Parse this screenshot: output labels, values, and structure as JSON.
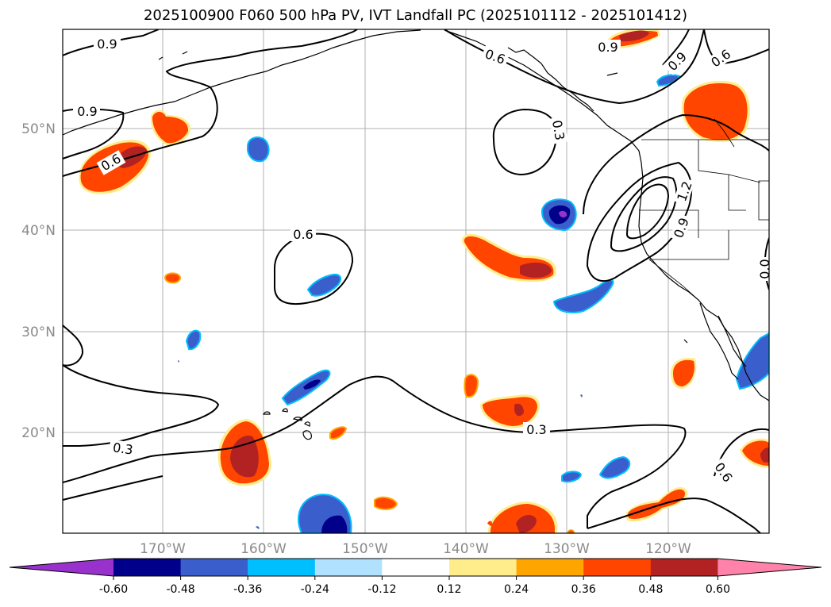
{
  "title": "2025100900 F060 500 hPa PV, IVT Landfall PC (2025101112 - 2025101412)",
  "map": {
    "lat_labels": [
      "50°N",
      "40°N",
      "30°N",
      "20°N"
    ],
    "lon_labels": [
      "170°W",
      "160°W",
      "150°W",
      "140°W",
      "130°W",
      "120°W"
    ],
    "contour_labels": [
      "0.9",
      "0.9",
      "0.6",
      "0.6",
      "0.9",
      "0.9",
      "0.6",
      "0.3",
      "0.6",
      "1.2",
      "0.9",
      "0.0",
      "0.3",
      "0.3",
      "0.6"
    ],
    "coastline_color": "#000000",
    "grid_color": "#b0b0b0"
  },
  "colorbar": {
    "ticks": [
      "-0.60",
      "-0.48",
      "-0.36",
      "-0.24",
      "-0.12",
      "0.12",
      "0.24",
      "0.36",
      "0.48",
      "0.60"
    ],
    "colors": [
      "#9932CC",
      "#00008B",
      "#3A5FCD",
      "#00BFFF",
      "#B0E2FF",
      "#FFFFFF",
      "#FFEC8B",
      "#FFA500",
      "#FF4500",
      "#B22222",
      "#FF82AB"
    ]
  }
}
